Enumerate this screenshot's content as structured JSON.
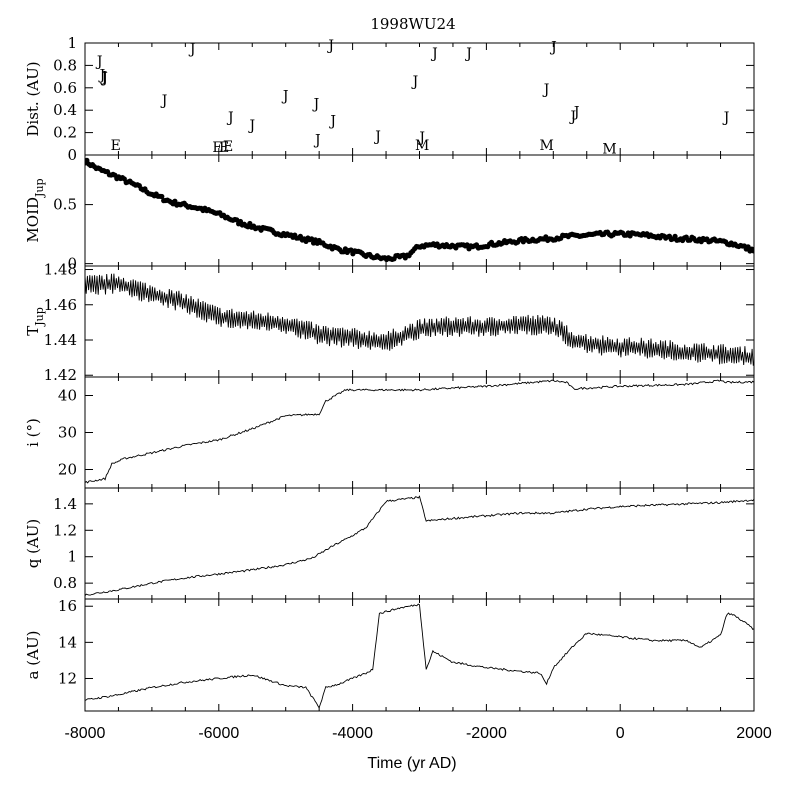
{
  "title": "1998WU24",
  "xlabel": "Time (yr AD)",
  "x_tick_labels": [
    "-8000",
    "-6000",
    "-4000",
    "-2000",
    "0",
    "2000"
  ],
  "chart_data": [
    {
      "id": "dist",
      "type": "scatter",
      "ylabel": "Dist. (AU)",
      "xlim": [
        -8000,
        2000
      ],
      "ylim": [
        0,
        1
      ],
      "ytick_labels": [
        "0",
        "0.2",
        "0.4",
        "0.6",
        "0.8",
        "1"
      ],
      "encounters": [
        {
          "x": -7780,
          "y": 0.84,
          "label": "J"
        },
        {
          "x": -7740,
          "y": 0.72,
          "label": "J"
        },
        {
          "x": -7710,
          "y": 0.7,
          "label": "J"
        },
        {
          "x": -7700,
          "y": 0.69,
          "label": "J"
        },
        {
          "x": -7540,
          "y": 0.09,
          "label": "E"
        },
        {
          "x": -6810,
          "y": 0.49,
          "label": "J"
        },
        {
          "x": -6390,
          "y": 0.95,
          "label": "J"
        },
        {
          "x": -6020,
          "y": 0.07,
          "label": "E"
        },
        {
          "x": -5920,
          "y": 0.07,
          "label": "E"
        },
        {
          "x": -5860,
          "y": 0.08,
          "label": "E"
        },
        {
          "x": -5820,
          "y": 0.34,
          "label": "J"
        },
        {
          "x": -5500,
          "y": 0.27,
          "label": "J"
        },
        {
          "x": -5000,
          "y": 0.53,
          "label": "J"
        },
        {
          "x": -4540,
          "y": 0.46,
          "label": "J"
        },
        {
          "x": -4520,
          "y": 0.14,
          "label": "J"
        },
        {
          "x": -4320,
          "y": 0.98,
          "label": "J"
        },
        {
          "x": -4290,
          "y": 0.31,
          "label": "J"
        },
        {
          "x": -3620,
          "y": 0.17,
          "label": "J"
        },
        {
          "x": -3060,
          "y": 0.66,
          "label": "J"
        },
        {
          "x": -2960,
          "y": 0.16,
          "label": "J"
        },
        {
          "x": -2960,
          "y": 0.09,
          "label": "M"
        },
        {
          "x": -2770,
          "y": 0.91,
          "label": "J"
        },
        {
          "x": -2260,
          "y": 0.91,
          "label": "J"
        },
        {
          "x": -1100,
          "y": 0.59,
          "label": "J"
        },
        {
          "x": -1100,
          "y": 0.09,
          "label": "M"
        },
        {
          "x": -990,
          "y": 0.97,
          "label": "J"
        },
        {
          "x": -700,
          "y": 0.35,
          "label": "J"
        },
        {
          "x": -650,
          "y": 0.39,
          "label": "J"
        },
        {
          "x": -160,
          "y": 0.06,
          "label": "M"
        },
        {
          "x": 1590,
          "y": 0.34,
          "label": "J"
        }
      ]
    },
    {
      "id": "moid",
      "type": "scatter",
      "ylabel": "MOID",
      "ylabel_sub": "Jup",
      "xlim": [
        -8000,
        2000
      ],
      "ylim": [
        -0.02,
        0.92
      ],
      "ytick_labels": [
        "0",
        "0.5"
      ],
      "ytick_values": [
        0,
        0.5
      ],
      "points": [
        [
          -8000,
          0.87
        ],
        [
          -7800,
          0.8
        ],
        [
          -7500,
          0.73
        ],
        [
          -7200,
          0.65
        ],
        [
          -7000,
          0.59
        ],
        [
          -6700,
          0.52
        ],
        [
          -6300,
          0.47
        ],
        [
          -6000,
          0.42
        ],
        [
          -5700,
          0.35
        ],
        [
          -5400,
          0.3
        ],
        [
          -5100,
          0.26
        ],
        [
          -4800,
          0.22
        ],
        [
          -4500,
          0.18
        ],
        [
          -4200,
          0.12
        ],
        [
          -4000,
          0.1
        ],
        [
          -3800,
          0.07
        ],
        [
          -3500,
          0.04
        ],
        [
          -3200,
          0.06
        ],
        [
          -3000,
          0.15
        ],
        [
          -2800,
          0.16
        ],
        [
          -2500,
          0.15
        ],
        [
          -2200,
          0.14
        ],
        [
          -2000,
          0.16
        ],
        [
          -1700,
          0.18
        ],
        [
          -1400,
          0.2
        ],
        [
          -1100,
          0.21
        ],
        [
          -800,
          0.23
        ],
        [
          -500,
          0.24
        ],
        [
          -200,
          0.25
        ],
        [
          100,
          0.25
        ],
        [
          400,
          0.24
        ],
        [
          700,
          0.22
        ],
        [
          1000,
          0.21
        ],
        [
          1300,
          0.2
        ],
        [
          1600,
          0.18
        ],
        [
          1800,
          0.15
        ],
        [
          2000,
          0.11
        ]
      ]
    },
    {
      "id": "tjup",
      "type": "line",
      "ylabel": "T",
      "ylabel_sub": "Jup",
      "xlim": [
        -8000,
        2000
      ],
      "ylim": [
        1.419,
        1.482
      ],
      "ytick_labels": [
        "1.42",
        "1.44",
        "1.46",
        "1.48"
      ],
      "ytick_values": [
        1.42,
        1.44,
        1.46,
        1.48
      ],
      "x": [
        -8000,
        -7500,
        -7000,
        -6500,
        -6000,
        -5500,
        -5000,
        -4500,
        -4000,
        -3500,
        -3000,
        -2500,
        -2000,
        -1500,
        -1000,
        -700,
        -500,
        0,
        500,
        1000,
        1500,
        2000
      ],
      "y": [
        1.471,
        1.472,
        1.466,
        1.461,
        1.453,
        1.451,
        1.449,
        1.443,
        1.441,
        1.439,
        1.446,
        1.448,
        1.447,
        1.449,
        1.448,
        1.44,
        1.438,
        1.436,
        1.435,
        1.433,
        1.432,
        1.43
      ],
      "amplitude": 0.006
    },
    {
      "id": "incl",
      "type": "line",
      "ylabel": "i (°)",
      "xlim": [
        -8000,
        2000
      ],
      "ylim": [
        15,
        45
      ],
      "ytick_labels": [
        "20",
        "30",
        "40"
      ],
      "ytick_values": [
        20,
        30,
        40
      ],
      "x": [
        -8000,
        -7700,
        -7600,
        -7400,
        -7000,
        -6500,
        -6000,
        -5500,
        -5000,
        -4500,
        -4400,
        -4100,
        -4000,
        -3500,
        -3000,
        -2000,
        -1000,
        -800,
        -700,
        0,
        1000,
        1500,
        1600,
        2000
      ],
      "y": [
        16.5,
        17.5,
        21.5,
        23.0,
        24.5,
        26.5,
        28.0,
        31.0,
        34.5,
        35.0,
        38.5,
        41.5,
        41.5,
        41.5,
        41.5,
        42.5,
        44.0,
        43.5,
        41.8,
        42.5,
        43.0,
        44.0,
        43.5,
        43.7
      ]
    },
    {
      "id": "q",
      "type": "line",
      "ylabel": "q (AU)",
      "xlim": [
        -8000,
        2000
      ],
      "ylim": [
        0.68,
        1.52
      ],
      "ytick_labels": [
        "0.8",
        "1",
        "1.2",
        "1.4"
      ],
      "ytick_values": [
        0.8,
        1.0,
        1.2,
        1.4
      ],
      "x": [
        -8000,
        -7500,
        -7000,
        -6500,
        -6000,
        -5500,
        -5000,
        -4600,
        -4300,
        -4000,
        -3800,
        -3600,
        -3500,
        -3000,
        -2900,
        -2500,
        -2000,
        -1500,
        -1000,
        -500,
        0,
        500,
        1000,
        1500,
        2000
      ],
      "y": [
        0.71,
        0.75,
        0.8,
        0.84,
        0.87,
        0.9,
        0.94,
        0.99,
        1.08,
        1.16,
        1.22,
        1.35,
        1.42,
        1.45,
        1.27,
        1.29,
        1.31,
        1.33,
        1.33,
        1.36,
        1.38,
        1.39,
        1.4,
        1.41,
        1.43
      ]
    },
    {
      "id": "a",
      "type": "line",
      "ylabel": "a (AU)",
      "xlim": [
        -8000,
        2000
      ],
      "ylim": [
        10.2,
        16.4
      ],
      "ytick_labels": [
        "12",
        "14",
        "16"
      ],
      "ytick_values": [
        12,
        14,
        16
      ],
      "x": [
        -8000,
        -7500,
        -7000,
        -6500,
        -6000,
        -5500,
        -5000,
        -4700,
        -4500,
        -4400,
        -4200,
        -4000,
        -3800,
        -3700,
        -3600,
        -3300,
        -3000,
        -2900,
        -2800,
        -2500,
        -2000,
        -1500,
        -1200,
        -1100,
        -1000,
        -700,
        -500,
        0,
        500,
        1000,
        1200,
        1500,
        1600,
        1700,
        1900,
        2000
      ],
      "y": [
        10.8,
        11.1,
        11.5,
        11.8,
        12.0,
        12.2,
        11.6,
        11.5,
        10.4,
        11.5,
        11.7,
        12.0,
        12.3,
        12.5,
        15.6,
        15.9,
        16.1,
        12.5,
        13.5,
        12.9,
        12.6,
        12.4,
        12.3,
        11.7,
        12.6,
        13.8,
        14.5,
        14.3,
        14.1,
        14.1,
        13.7,
        14.4,
        15.6,
        15.5,
        15.0,
        14.7
      ]
    }
  ]
}
